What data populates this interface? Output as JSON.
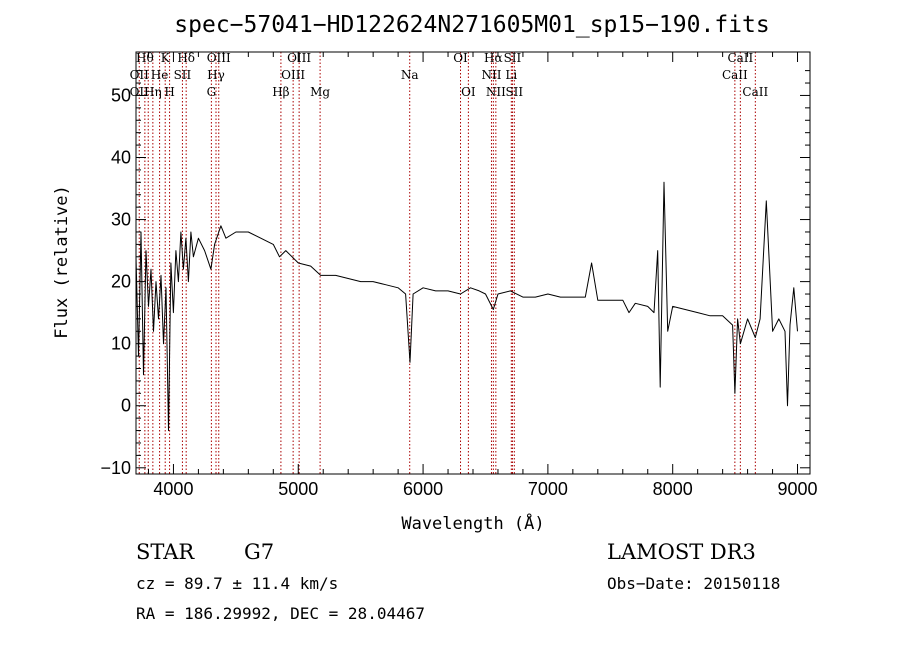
{
  "chart_data": {
    "type": "line",
    "title": "spec−57041−HD122624N271605M01_sp15−190.fits",
    "xlabel": "Wavelength (Å)",
    "ylabel": "Flux (relative)",
    "xlim": [
      3700,
      9100
    ],
    "ylim": [
      -11,
      57
    ],
    "xticks": [
      4000,
      5000,
      6000,
      7000,
      8000,
      9000
    ],
    "yticks": [
      -10,
      0,
      10,
      20,
      30,
      40,
      50
    ],
    "ytick_labels": [
      "−10",
      "0",
      "10",
      "20",
      "30",
      "40",
      "50"
    ],
    "grid": false,
    "colors": {
      "spectrum": "#000000",
      "line_markers": "#aa0000"
    },
    "spectrum": [
      [
        3700,
        24
      ],
      [
        3720,
        8
      ],
      [
        3740,
        28
      ],
      [
        3760,
        5
      ],
      [
        3780,
        25
      ],
      [
        3800,
        16
      ],
      [
        3820,
        22
      ],
      [
        3840,
        12
      ],
      [
        3860,
        20
      ],
      [
        3880,
        14
      ],
      [
        3900,
        21
      ],
      [
        3920,
        10
      ],
      [
        3940,
        19
      ],
      [
        3960,
        -4
      ],
      [
        3980,
        23
      ],
      [
        4000,
        15
      ],
      [
        4020,
        25
      ],
      [
        4040,
        20
      ],
      [
        4060,
        28
      ],
      [
        4080,
        22
      ],
      [
        4100,
        27
      ],
      [
        4120,
        20
      ],
      [
        4140,
        28
      ],
      [
        4160,
        24
      ],
      [
        4200,
        27
      ],
      [
        4250,
        25
      ],
      [
        4300,
        22
      ],
      [
        4330,
        26
      ],
      [
        4380,
        29
      ],
      [
        4420,
        27
      ],
      [
        4500,
        28
      ],
      [
        4600,
        28
      ],
      [
        4700,
        27
      ],
      [
        4800,
        26
      ],
      [
        4850,
        24
      ],
      [
        4900,
        25
      ],
      [
        5000,
        23
      ],
      [
        5100,
        22.5
      ],
      [
        5180,
        21
      ],
      [
        5300,
        21
      ],
      [
        5400,
        20.5
      ],
      [
        5500,
        20
      ],
      [
        5600,
        20
      ],
      [
        5700,
        19.5
      ],
      [
        5800,
        19
      ],
      [
        5860,
        18
      ],
      [
        5895,
        7
      ],
      [
        5920,
        18
      ],
      [
        6000,
        19
      ],
      [
        6100,
        18.5
      ],
      [
        6200,
        18.5
      ],
      [
        6300,
        18
      ],
      [
        6380,
        19
      ],
      [
        6450,
        18.5
      ],
      [
        6500,
        18
      ],
      [
        6563,
        15.5
      ],
      [
        6600,
        18
      ],
      [
        6700,
        18.5
      ],
      [
        6800,
        17.5
      ],
      [
        6900,
        17.5
      ],
      [
        7000,
        18
      ],
      [
        7100,
        17.5
      ],
      [
        7200,
        17.5
      ],
      [
        7300,
        17.5
      ],
      [
        7350,
        23
      ],
      [
        7400,
        17
      ],
      [
        7500,
        17
      ],
      [
        7600,
        17
      ],
      [
        7650,
        15
      ],
      [
        7700,
        16.5
      ],
      [
        7800,
        16
      ],
      [
        7850,
        15
      ],
      [
        7880,
        25
      ],
      [
        7900,
        3
      ],
      [
        7930,
        36
      ],
      [
        7960,
        12
      ],
      [
        8000,
        16
      ],
      [
        8100,
        15.5
      ],
      [
        8200,
        15
      ],
      [
        8300,
        14.5
      ],
      [
        8400,
        14.5
      ],
      [
        8480,
        13
      ],
      [
        8498,
        2
      ],
      [
        8520,
        14
      ],
      [
        8542,
        10
      ],
      [
        8600,
        14
      ],
      [
        8662,
        11
      ],
      [
        8700,
        14
      ],
      [
        8750,
        33
      ],
      [
        8800,
        12
      ],
      [
        8850,
        14
      ],
      [
        8900,
        12
      ],
      [
        8920,
        0
      ],
      [
        8940,
        13
      ],
      [
        8970,
        19
      ],
      [
        9000,
        12
      ]
    ],
    "lines": [
      {
        "x": 3726,
        "labels": [
          {
            "text": "OII",
            "row": 2
          },
          {
            "text": "OII",
            "row": 3
          }
        ]
      },
      {
        "x": 3771,
        "labels": [
          {
            "text": "Hθ",
            "row": 1
          }
        ]
      },
      {
        "x": 3798,
        "labels": []
      },
      {
        "x": 3835,
        "labels": [
          {
            "text": "Hη",
            "row": 3
          }
        ]
      },
      {
        "x": 3889,
        "labels": [
          {
            "text": "He",
            "row": 2
          }
        ]
      },
      {
        "x": 3934,
        "labels": [
          {
            "text": "K",
            "row": 1
          }
        ]
      },
      {
        "x": 3969,
        "labels": [
          {
            "text": "H",
            "row": 3
          }
        ]
      },
      {
        "x": 4072,
        "labels": [
          {
            "text": "SII",
            "row": 2
          }
        ]
      },
      {
        "x": 4102,
        "labels": [
          {
            "text": "Hδ",
            "row": 1
          }
        ]
      },
      {
        "x": 4304,
        "labels": [
          {
            "text": "G",
            "row": 3
          }
        ]
      },
      {
        "x": 4341,
        "labels": [
          {
            "text": "Hγ",
            "row": 2
          }
        ]
      },
      {
        "x": 4363,
        "labels": [
          {
            "text": "OIII",
            "row": 1
          }
        ]
      },
      {
        "x": 4861,
        "labels": [
          {
            "text": "Hβ",
            "row": 3
          }
        ]
      },
      {
        "x": 4959,
        "labels": [
          {
            "text": "OIII",
            "row": 2
          }
        ]
      },
      {
        "x": 5007,
        "labels": [
          {
            "text": "OIII",
            "row": 1
          }
        ]
      },
      {
        "x": 5175,
        "labels": [
          {
            "text": "Mg",
            "row": 3
          }
        ]
      },
      {
        "x": 5893,
        "labels": [
          {
            "text": "Na",
            "row": 2
          }
        ]
      },
      {
        "x": 6300,
        "labels": [
          {
            "text": "OI",
            "row": 1
          }
        ]
      },
      {
        "x": 6363,
        "labels": [
          {
            "text": "OI",
            "row": 3
          }
        ]
      },
      {
        "x": 6548,
        "labels": [
          {
            "text": "NII",
            "row": 2
          }
        ]
      },
      {
        "x": 6563,
        "labels": [
          {
            "text": "Hα",
            "row": 1
          }
        ]
      },
      {
        "x": 6583,
        "labels": [
          {
            "text": "NII",
            "row": 3
          }
        ]
      },
      {
        "x": 6707,
        "labels": [
          {
            "text": "Li",
            "row": 2
          }
        ]
      },
      {
        "x": 6716,
        "labels": [
          {
            "text": "SII",
            "row": 1
          }
        ]
      },
      {
        "x": 6731,
        "labels": [
          {
            "text": "SII",
            "row": 3
          }
        ]
      },
      {
        "x": 8498,
        "labels": [
          {
            "text": "CaII",
            "row": 2
          }
        ]
      },
      {
        "x": 8542,
        "labels": [
          {
            "text": "CaII",
            "row": 1
          }
        ]
      },
      {
        "x": 8662,
        "labels": [
          {
            "text": "CaII",
            "row": 3
          }
        ]
      }
    ]
  },
  "info": {
    "class": "STAR",
    "subclass": "G7",
    "survey": "LAMOST DR3",
    "cz": "cz = 89.7 ± 11.4 km/s",
    "obs_date": "Obs−Date: 20150118",
    "coords": "RA = 186.29992, DEC =  28.04467"
  }
}
